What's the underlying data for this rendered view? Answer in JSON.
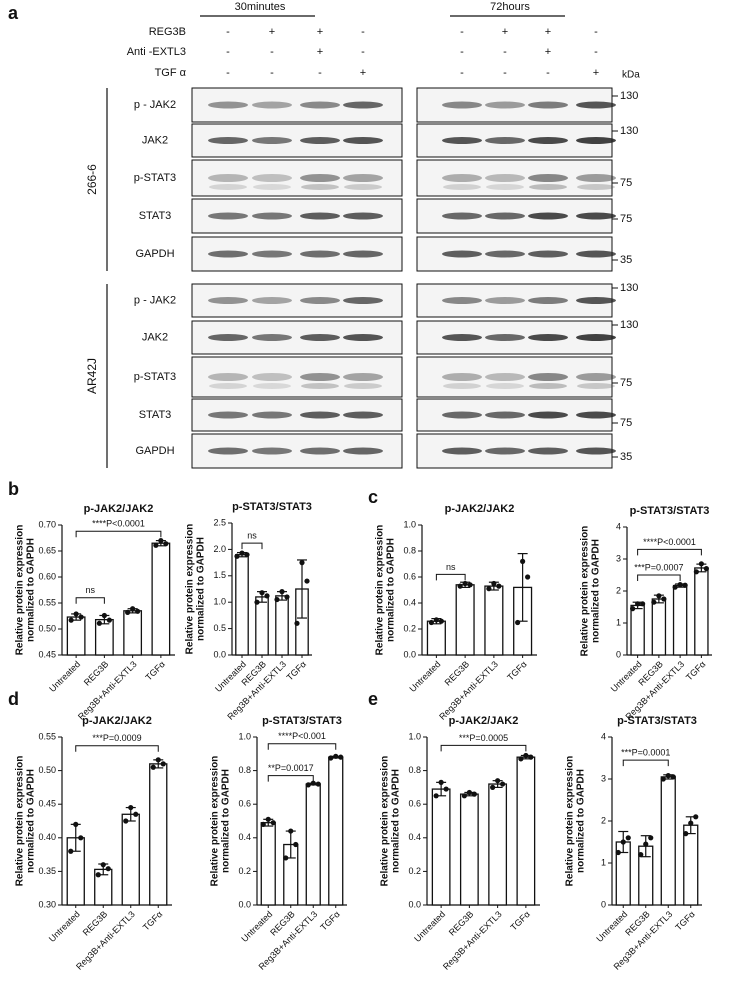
{
  "panel_labels": [
    "a",
    "b",
    "c",
    "d",
    "e"
  ],
  "blot": {
    "timepoints": [
      "30minutes",
      "72hours"
    ],
    "treatments": [
      {
        "name": "REG3B",
        "signs": [
          "-",
          "+",
          "+",
          "-"
        ]
      },
      {
        "name": "Anti -EXTL3",
        "signs": [
          "-",
          "-",
          "+",
          "-"
        ]
      },
      {
        "name": "TGF α",
        "signs": [
          "-",
          "-",
          "-",
          "+"
        ]
      }
    ],
    "kda_label": "kDa",
    "cell_lines": [
      {
        "name": "266-6",
        "rows": [
          {
            "name": "p - JAK2",
            "kda": 130
          },
          {
            "name": "JAK2",
            "kda": 130
          },
          {
            "name": "p-STAT3",
            "kda": 75
          },
          {
            "name": "STAT3",
            "kda": 75
          },
          {
            "name": "GAPDH",
            "kda": 35
          }
        ]
      },
      {
        "name": "AR42J",
        "rows": [
          {
            "name": "p - JAK2",
            "kda": 130
          },
          {
            "name": "JAK2",
            "kda": 130
          },
          {
            "name": "p-STAT3",
            "kda": 75
          },
          {
            "name": "STAT3",
            "kda": 75
          },
          {
            "name": "GAPDH",
            "kda": 35
          }
        ]
      }
    ]
  },
  "chart_data": [
    {
      "type": "bar",
      "title": "p-JAK2/JAK2",
      "ylabel": [
        "Relative protein expression",
        "normalized to GAPDH"
      ],
      "categories": [
        "Untreated",
        "REG3B",
        "Reg3B+Anti-EXTL3",
        "TGFα"
      ],
      "values": [
        0.523,
        0.518,
        0.535,
        0.665
      ],
      "errors": [
        0.006,
        0.008,
        0.004,
        0.005
      ],
      "points": [
        [
          0.517,
          0.529,
          0.523
        ],
        [
          0.511,
          0.526,
          0.517
        ],
        [
          0.532,
          0.539,
          0.534
        ],
        [
          0.661,
          0.67,
          0.664
        ]
      ],
      "ylim": [
        0.45,
        0.7
      ],
      "yticks": [
        0.45,
        {
          "value": 0.5,
          "label": "0.50"
        },
        0.55,
        {
          "value": 0.6,
          "label": "0.60"
        },
        0.65,
        {
          "value": 0.7,
          "label": "0.70"
        }
      ],
      "annotations": [
        "ns",
        "****P<0.0001"
      ]
    },
    {
      "type": "bar",
      "title": "p-STAT3/STAT3",
      "ylabel": [
        "Relative protein expression",
        "normalized to GAPDH"
      ],
      "categories": [
        "Untreated",
        "REG3B",
        "Reg3B+Anti-EXTL3",
        "TGFα"
      ],
      "values": [
        1.9,
        1.1,
        1.12,
        1.25
      ],
      "errors": [
        0.04,
        0.1,
        0.08,
        0.55
      ],
      "points": [
        [
          1.87,
          1.93,
          1.9
        ],
        [
          1.0,
          1.18,
          1.12
        ],
        [
          1.05,
          1.2,
          1.1
        ],
        [
          0.6,
          1.75,
          1.4
        ]
      ],
      "ylim": [
        0,
        2.5
      ],
      "yticks": [
        {
          "value": 0,
          "label": "0.0"
        },
        0.5,
        {
          "value": 1,
          "label": "1.0"
        },
        1.5,
        {
          "value": 2,
          "label": "2.0"
        },
        2.5
      ],
      "annotations": [
        "ns"
      ]
    },
    {
      "type": "bar",
      "title": "p-JAK2/JAK2",
      "ylabel": [
        "Relative protein expression",
        "normalized to GAPDH"
      ],
      "categories": [
        "Untreated",
        "REG3B",
        "Reg3B+Anti-EXTL3",
        "TGFα"
      ],
      "values": [
        0.26,
        0.54,
        0.53,
        0.52
      ],
      "errors": [
        0.02,
        0.02,
        0.03,
        0.26
      ],
      "points": [
        [
          0.25,
          0.27,
          0.26
        ],
        [
          0.53,
          0.55,
          0.54
        ],
        [
          0.51,
          0.55,
          0.53
        ],
        [
          0.25,
          0.72,
          0.6
        ]
      ],
      "ylim": [
        0,
        1
      ],
      "yticks": [
        {
          "value": 0,
          "label": "0.0"
        },
        0.2,
        0.4,
        0.6,
        0.8,
        {
          "value": 1,
          "label": "1.0"
        }
      ],
      "annotations": [
        "ns"
      ]
    },
    {
      "type": "bar",
      "title": "p-STAT3/STAT3",
      "ylabel": [
        "Relative protein expression",
        "normalized to GAPDH"
      ],
      "categories": [
        "Untreated",
        "REG3B",
        "Reg3B+Anti-EXTL3",
        "TGFα"
      ],
      "values": [
        1.55,
        1.75,
        2.17,
        2.72
      ],
      "errors": [
        0.1,
        0.12,
        0.05,
        0.12
      ],
      "points": [
        [
          1.45,
          1.6,
          1.6
        ],
        [
          1.65,
          1.85,
          1.75
        ],
        [
          2.12,
          2.2,
          2.18
        ],
        [
          2.6,
          2.85,
          2.7
        ]
      ],
      "ylim": [
        0,
        4
      ],
      "yticks": [
        0,
        1,
        2,
        3,
        4
      ],
      "annotations": [
        "***P=0.0007",
        "****P<0.0001"
      ]
    },
    {
      "type": "bar",
      "title": "p-JAK2/JAK2",
      "ylabel": [
        "Relative protein expression",
        "normalized to GAPDH"
      ],
      "categories": [
        "Untreated",
        "REG3B",
        "Reg3B+Anti-EXTL3",
        "TGFα"
      ],
      "values": [
        0.4,
        0.353,
        0.435,
        0.51
      ],
      "errors": [
        0.02,
        0.008,
        0.01,
        0.006
      ],
      "points": [
        [
          0.38,
          0.42,
          0.4
        ],
        [
          0.345,
          0.36,
          0.354
        ],
        [
          0.425,
          0.445,
          0.435
        ],
        [
          0.505,
          0.516,
          0.51
        ]
      ],
      "ylim": [
        0.3,
        0.55
      ],
      "yticks": [
        {
          "value": 0.3,
          "label": "0.30"
        },
        0.35,
        {
          "value": 0.4,
          "label": "0.40"
        },
        0.45,
        {
          "value": 0.5,
          "label": "0.50"
        },
        0.55
      ],
      "annotations": [
        "***P=0.0009"
      ]
    },
    {
      "type": "bar",
      "title": "p-STAT3/STAT3",
      "ylabel": [
        "Relative protein expression",
        "normalized to GAPDH"
      ],
      "categories": [
        "Untreated",
        "REG3B",
        "Reg3B+Anti-EXTL3",
        "TGFα"
      ],
      "values": [
        0.49,
        0.36,
        0.72,
        0.88
      ],
      "errors": [
        0.02,
        0.08,
        0.005,
        0.005
      ],
      "points": [
        [
          0.48,
          0.51,
          0.49
        ],
        [
          0.28,
          0.44,
          0.36
        ],
        [
          0.715,
          0.725,
          0.72
        ],
        [
          0.875,
          0.885,
          0.88
        ]
      ],
      "ylim": [
        0,
        1
      ],
      "yticks": [
        {
          "value": 0,
          "label": "0.0"
        },
        0.2,
        0.4,
        0.6,
        0.8,
        {
          "value": 1,
          "label": "1.0"
        }
      ],
      "annotations": [
        "**P=0.0017",
        "****P<0.001"
      ]
    },
    {
      "type": "bar",
      "title": "p-JAK2/JAK2",
      "ylabel": [
        "Relative protein expression",
        "normalized to GAPDH"
      ],
      "categories": [
        "Untreated",
        "REG3B",
        "Reg3B+Anti-EXTL3",
        "TGFα"
      ],
      "values": [
        0.69,
        0.66,
        0.72,
        0.88
      ],
      "errors": [
        0.04,
        0.01,
        0.02,
        0.01
      ],
      "points": [
        [
          0.65,
          0.73,
          0.69
        ],
        [
          0.65,
          0.67,
          0.66
        ],
        [
          0.7,
          0.74,
          0.72
        ],
        [
          0.87,
          0.89,
          0.88
        ]
      ],
      "ylim": [
        0,
        1
      ],
      "yticks": [
        {
          "value": 0,
          "label": "0.0"
        },
        0.2,
        0.4,
        0.6,
        0.8,
        {
          "value": 1,
          "label": "1.0"
        }
      ],
      "annotations": [
        "***P=0.0005"
      ]
    },
    {
      "type": "bar",
      "title": "p-STAT3/STAT3",
      "ylabel": [
        "Relative protein expression",
        "normalized to GAPDH"
      ],
      "categories": [
        "Untreated",
        "REG3B",
        "Reg3B+Anti-EXTL3",
        "TGFα"
      ],
      "values": [
        1.5,
        1.4,
        3.05,
        1.9
      ],
      "errors": [
        0.25,
        0.25,
        0.05,
        0.2
      ],
      "points": [
        [
          1.25,
          1.5,
          1.6
        ],
        [
          1.2,
          1.45,
          1.6
        ],
        [
          3.0,
          3.08,
          3.05
        ],
        [
          1.7,
          1.95,
          2.1
        ]
      ],
      "ylim": [
        0,
        4
      ],
      "yticks": [
        0,
        1,
        2,
        3,
        4
      ],
      "annotations": [
        "***P=0.0001"
      ]
    }
  ]
}
